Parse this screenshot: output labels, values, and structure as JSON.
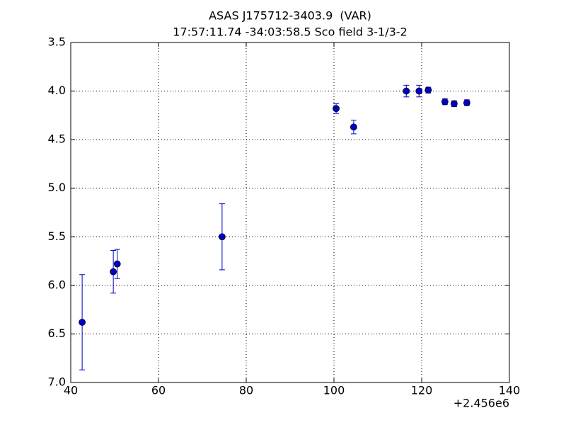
{
  "chart_data": {
    "type": "errorbar",
    "title": "ASAS J175712-3403.9  (VAR)",
    "subtitle": "17:57:11.74 -34:03:58.5 Sco field 3-1/3-2",
    "x_offset_label": "+2.456e6",
    "x": [
      42.6,
      49.7,
      50.6,
      74.5,
      100.5,
      104.5,
      116.5,
      119.4,
      121.5,
      125.3,
      127.4,
      130.3
    ],
    "y": [
      6.38,
      5.86,
      5.78,
      5.5,
      4.18,
      4.37,
      4.0,
      4.0,
      3.99,
      4.11,
      4.13,
      4.12
    ],
    "errors": [
      0.49,
      0.22,
      0.15,
      0.34,
      0.05,
      0.07,
      0.06,
      0.06,
      0.03,
      0.03,
      0.03,
      0.03
    ],
    "color": "#0000cc",
    "xlim": [
      40,
      140
    ],
    "xticks": [
      40,
      60,
      80,
      100,
      120,
      140
    ],
    "ylim": [
      7,
      3.5
    ],
    "yticks": [
      {
        "value": 3.5,
        "label": "3.5"
      },
      {
        "value": 4,
        "label": "4.0"
      },
      {
        "value": 4.5,
        "label": "4.5"
      },
      {
        "value": 5,
        "label": "5.0"
      },
      {
        "value": 5.5,
        "label": "5.5"
      },
      {
        "value": 6,
        "label": "6.0"
      },
      {
        "value": 6.5,
        "label": "6.5"
      },
      {
        "value": 7,
        "label": "7.0"
      }
    ],
    "grid": true
  }
}
